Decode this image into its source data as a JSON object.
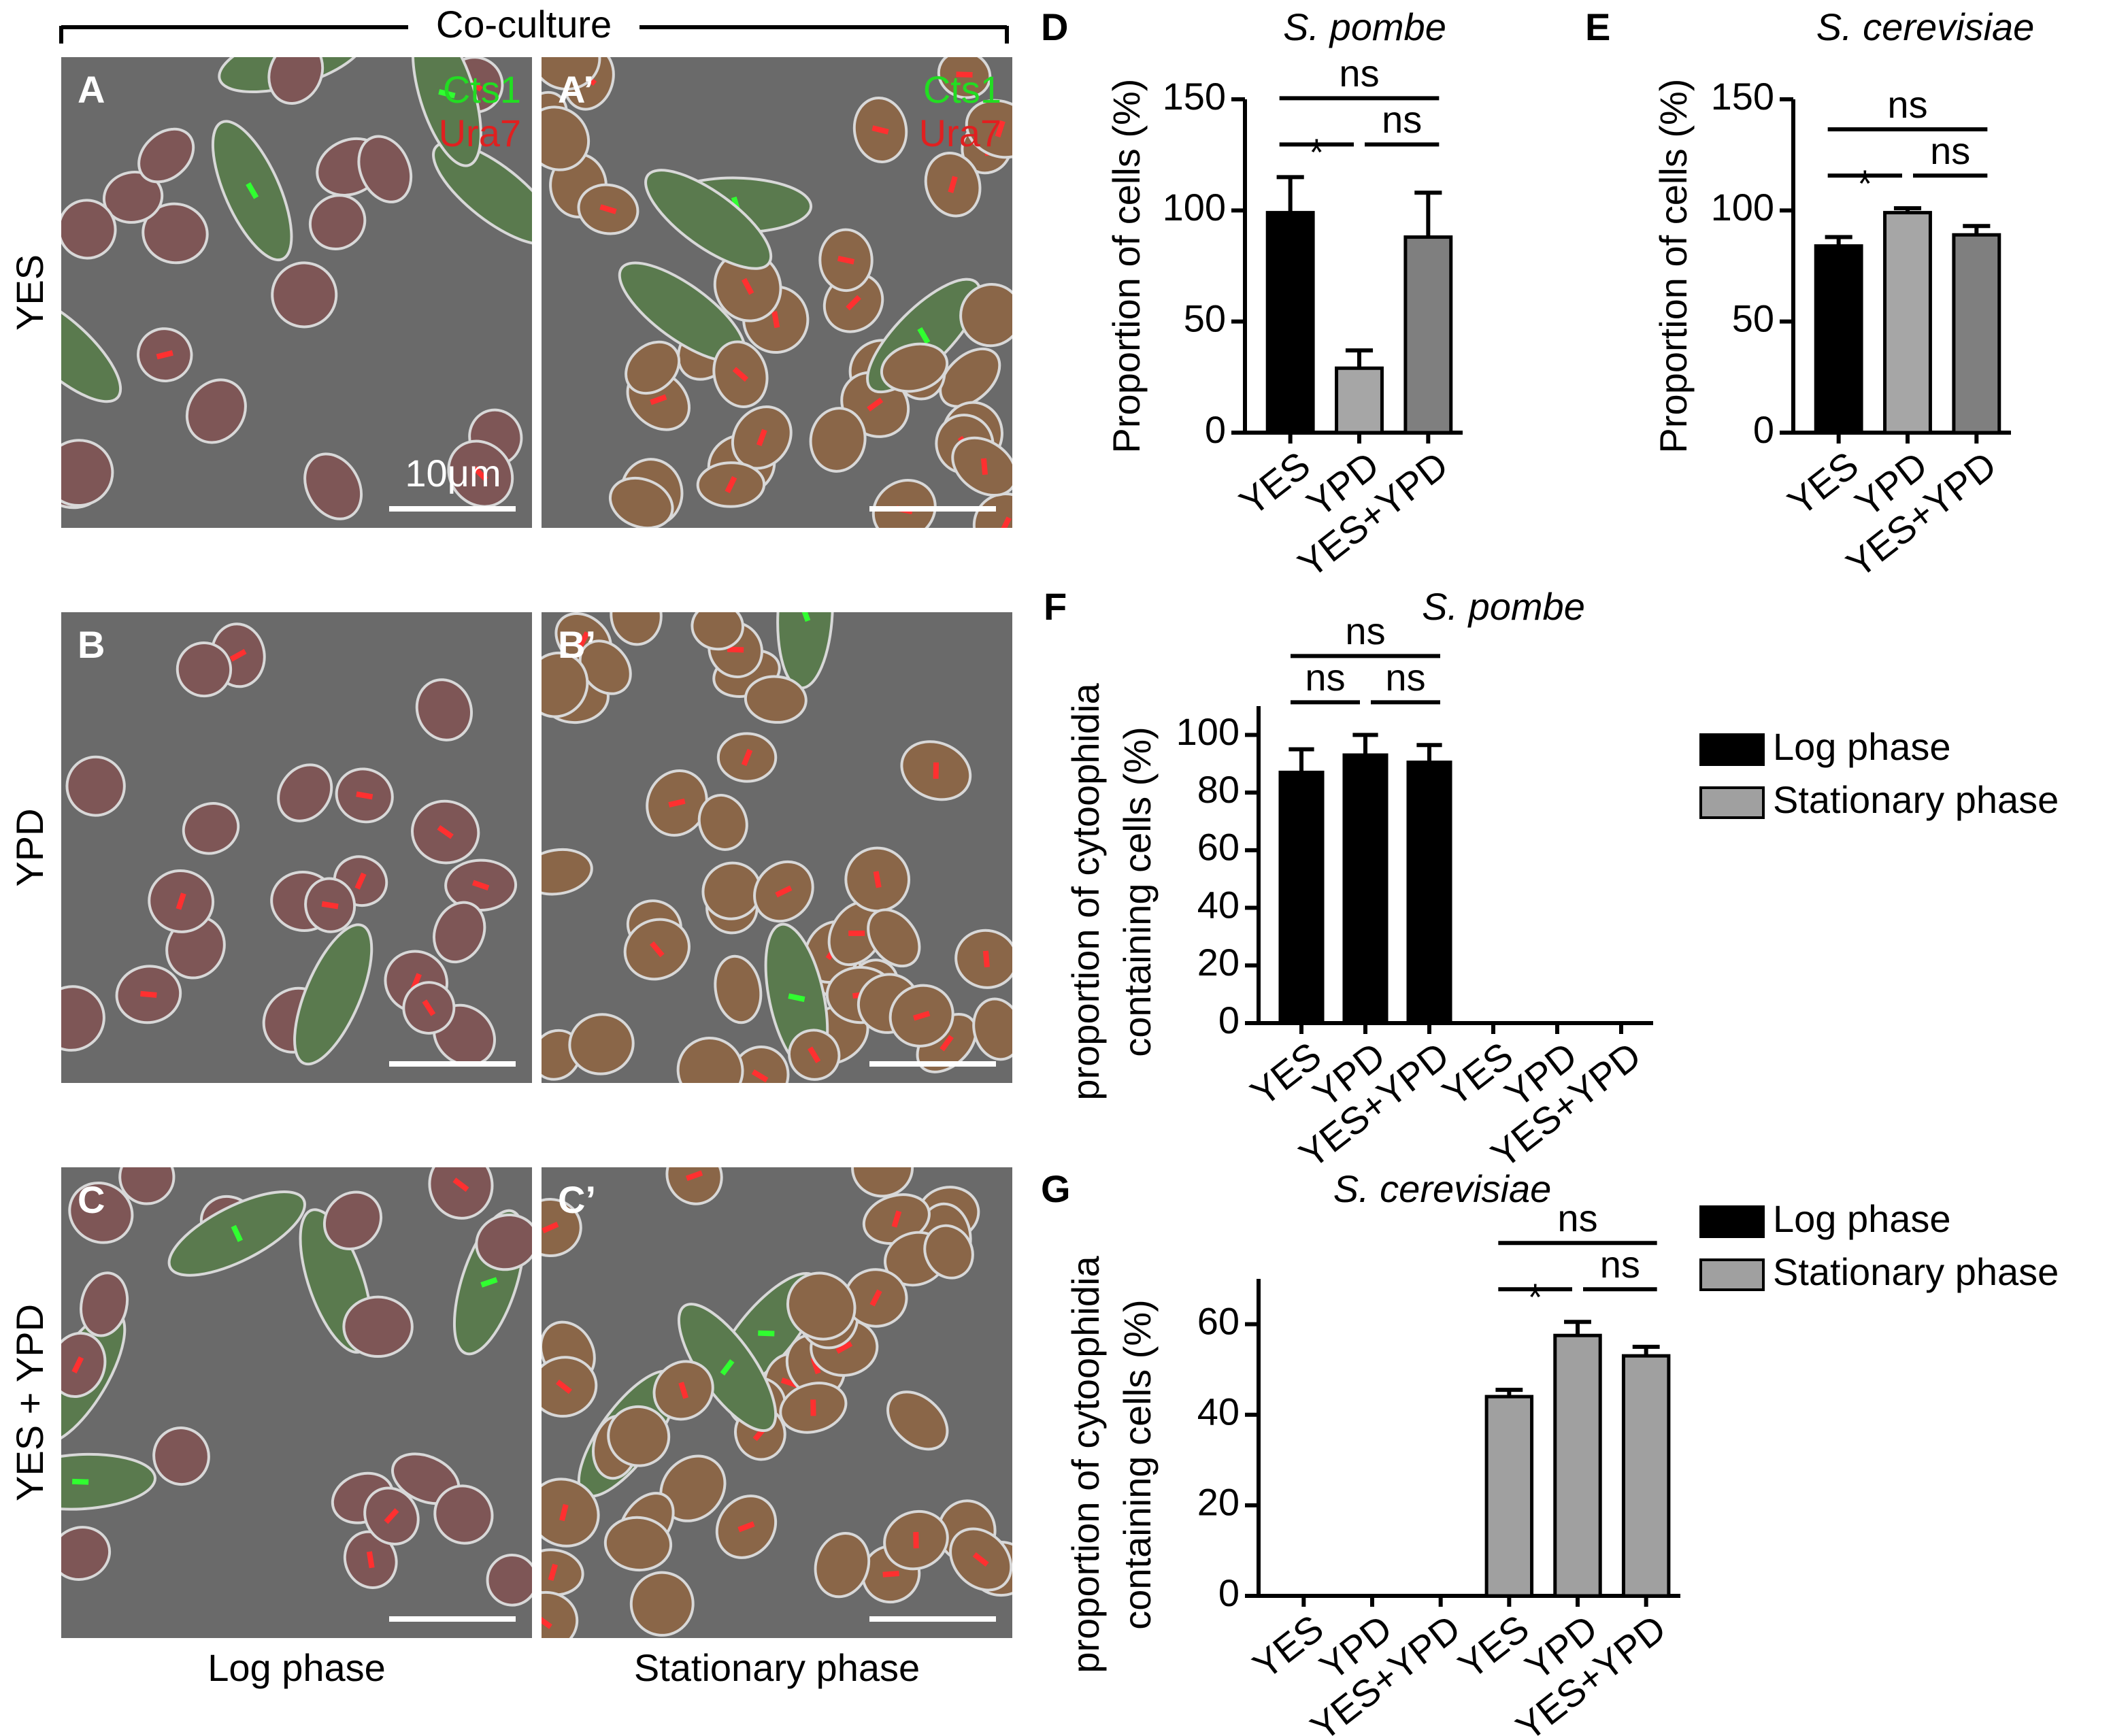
{
  "figure": {
    "header": "Co-culture",
    "rows": [
      "YES",
      "YPD",
      "YES + YPD"
    ],
    "columns": [
      "Log phase",
      "Stationary phase"
    ],
    "panels": [
      "A",
      "A’",
      "B",
      "B’",
      "C",
      "C’"
    ],
    "channels": [
      {
        "name": "Cts1",
        "color": "#22dd22"
      },
      {
        "name": "Ura7",
        "color": "#e02020"
      }
    ],
    "scale_bar": "10μm"
  },
  "chart_data": [
    {
      "type": "bar",
      "panel": "D",
      "title": "S. pombe",
      "ylabel": [
        "Proportion of cells (%)"
      ],
      "categories": [
        "YES",
        "YPD",
        "YES+YPD"
      ],
      "values": [
        99,
        29,
        88
      ],
      "errors": [
        16,
        8,
        20
      ],
      "colors": [
        "#000000",
        "#a6a6a6",
        "#7f7f7f"
      ],
      "ylim": [
        0,
        150
      ],
      "yticks": [
        0,
        50,
        100,
        150
      ],
      "significance": [
        {
          "label": "ns",
          "pair": [
            0,
            2
          ]
        },
        {
          "label": "*",
          "pair": [
            0,
            1
          ]
        },
        {
          "label": "ns",
          "pair": [
            1,
            2
          ]
        }
      ]
    },
    {
      "type": "bar",
      "panel": "E",
      "title": "S. cerevisiae",
      "ylabel": [
        "Proportion of cells (%)"
      ],
      "categories": [
        "YES",
        "YPD",
        "YES+YPD"
      ],
      "values": [
        84,
        99,
        89
      ],
      "errors": [
        4,
        2,
        4
      ],
      "colors": [
        "#000000",
        "#a6a6a6",
        "#7f7f7f"
      ],
      "ylim": [
        0,
        150
      ],
      "yticks": [
        0,
        50,
        100,
        150
      ],
      "significance": [
        {
          "label": "ns",
          "pair": [
            0,
            2
          ]
        },
        {
          "label": "*",
          "pair": [
            0,
            1
          ]
        },
        {
          "label": "ns",
          "pair": [
            1,
            2
          ]
        }
      ]
    },
    {
      "type": "bar",
      "panel": "F",
      "title": "S. pombe",
      "ylabel": [
        "proportion of cytoophidia",
        "containing cells (%)"
      ],
      "categories": [
        "YES",
        "YPD",
        "YES+YPD",
        "YES",
        "YPD",
        "YES+YPD"
      ],
      "series": [
        {
          "name": "Log phase",
          "color": "#000000",
          "values": [
            87,
            93,
            90.5,
            null,
            null,
            null
          ],
          "errors": [
            8,
            7,
            6,
            null,
            null,
            null
          ]
        },
        {
          "name": "Stationary phase",
          "color": "#a0a0a0",
          "values": [
            null,
            null,
            null,
            null,
            null,
            null
          ],
          "errors": [
            null,
            null,
            null,
            null,
            null,
            null
          ]
        }
      ],
      "ylim": [
        0,
        110
      ],
      "yticks": [
        0,
        20,
        40,
        60,
        80,
        100
      ],
      "legend": "right",
      "significance": [
        {
          "label": "ns",
          "pair": [
            0,
            2
          ]
        },
        {
          "label": "ns",
          "pair": [
            0,
            1
          ]
        },
        {
          "label": "ns",
          "pair": [
            1,
            2
          ]
        }
      ]
    },
    {
      "type": "bar",
      "panel": "G",
      "title": "S. cerevisiae",
      "ylabel": [
        "proportion of cytoophidia",
        "containing cells (%)"
      ],
      "categories": [
        "YES",
        "YPD",
        "YES+YPD",
        "YES",
        "YPD",
        "YES+YPD"
      ],
      "series": [
        {
          "name": "Log phase",
          "color": "#000000",
          "values": [
            null,
            null,
            null,
            null,
            null,
            null
          ],
          "errors": [
            null,
            null,
            null,
            null,
            null,
            null
          ]
        },
        {
          "name": "Stationary phase",
          "color": "#a0a0a0",
          "values": [
            null,
            null,
            null,
            44,
            57.5,
            53
          ],
          "errors": [
            null,
            null,
            null,
            1.5,
            3,
            2
          ]
        }
      ],
      "ylim": [
        0,
        70
      ],
      "yticks": [
        0,
        20,
        40,
        60
      ],
      "legend": "right",
      "significance": [
        {
          "label": "ns",
          "pair": [
            3,
            5
          ]
        },
        {
          "label": "*",
          "pair": [
            3,
            4
          ]
        },
        {
          "label": "ns",
          "pair": [
            4,
            5
          ]
        }
      ]
    }
  ]
}
